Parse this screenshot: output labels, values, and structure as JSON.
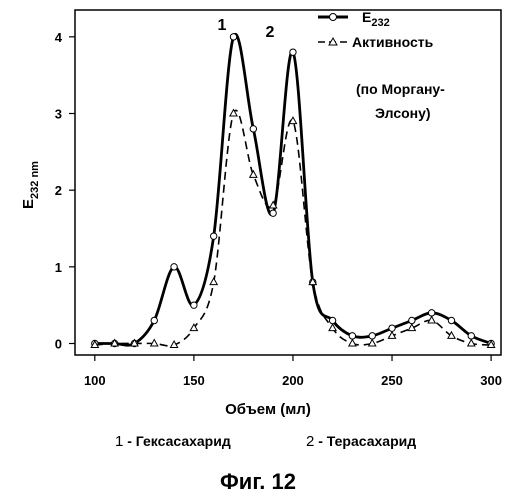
{
  "chart_data": {
    "type": "line",
    "xlabel": "Объем (мл)",
    "ylabel_main": "E",
    "ylabel_sub": "232 nm",
    "xlim": [
      90,
      305
    ],
    "ylim": [
      -0.15,
      4.35
    ],
    "x_ticks": [
      100,
      150,
      200,
      250,
      300
    ],
    "y_ticks": [
      0,
      1,
      2,
      3,
      4
    ],
    "grid": false,
    "legend_position": "top-right",
    "series": [
      {
        "name_main": "E",
        "name_sub": "232",
        "style": "solid",
        "marker": "circle",
        "color": "#000000",
        "points": [
          [
            100,
            0.0
          ],
          [
            110,
            0.0
          ],
          [
            120,
            0.0
          ],
          [
            130,
            0.3
          ],
          [
            140,
            1.0
          ],
          [
            150,
            0.5
          ],
          [
            160,
            1.4
          ],
          [
            170,
            4.0
          ],
          [
            180,
            2.8
          ],
          [
            190,
            1.7
          ],
          [
            200,
            3.8
          ],
          [
            210,
            0.8
          ],
          [
            220,
            0.3
          ],
          [
            230,
            0.1
          ],
          [
            240,
            0.1
          ],
          [
            250,
            0.2
          ],
          [
            260,
            0.3
          ],
          [
            270,
            0.4
          ],
          [
            280,
            0.3
          ],
          [
            290,
            0.1
          ],
          [
            300,
            0.0
          ]
        ]
      },
      {
        "name": "Активность",
        "style": "dashed",
        "marker": "triangle",
        "color": "#000000",
        "points": [
          [
            100,
            -0.02
          ],
          [
            110,
            0.0
          ],
          [
            120,
            0.0
          ],
          [
            130,
            0.0
          ],
          [
            140,
            -0.02
          ],
          [
            150,
            0.2
          ],
          [
            160,
            0.8
          ],
          [
            170,
            3.0
          ],
          [
            180,
            2.2
          ],
          [
            190,
            1.8
          ],
          [
            200,
            2.9
          ],
          [
            210,
            0.8
          ],
          [
            220,
            0.2
          ],
          [
            230,
            0.0
          ],
          [
            240,
            0.0
          ],
          [
            250,
            0.1
          ],
          [
            260,
            0.2
          ],
          [
            270,
            0.3
          ],
          [
            280,
            0.1
          ],
          [
            290,
            0.0
          ],
          [
            300,
            -0.02
          ]
        ]
      }
    ],
    "annotations": {
      "note_line1": "(по Моргану-",
      "note_line2": "Элсону)",
      "peak1": "1",
      "peak2": "2"
    }
  },
  "caption": {
    "item1_num": "1",
    "item1_text": " - Гексасахарид",
    "item2_num": "2",
    "item2_text": " - Терасахарид"
  },
  "figure_label": "Фиг. 12"
}
